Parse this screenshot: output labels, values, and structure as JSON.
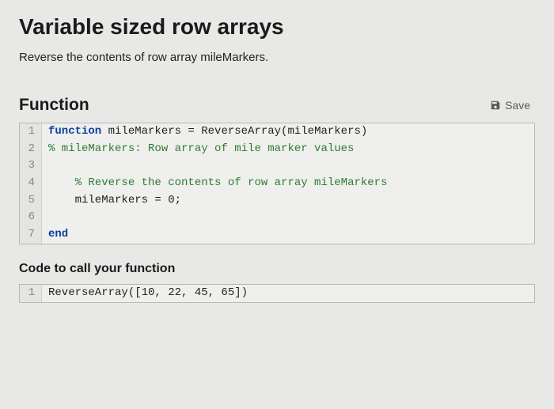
{
  "title": "Variable sized row arrays",
  "prompt": "Reverse the contents of row array mileMarkers.",
  "function_heading": "Function",
  "save_label": "Save",
  "editor": {
    "lines": [
      {
        "n": "1",
        "segments": [
          {
            "cls": "kw",
            "text": "function"
          },
          {
            "cls": "",
            "text": " mileMarkers = ReverseArray(mileMarkers)"
          }
        ]
      },
      {
        "n": "2",
        "segments": [
          {
            "cls": "cm",
            "text": "% mileMarkers: Row array of mile marker values"
          }
        ]
      },
      {
        "n": "3",
        "segments": []
      },
      {
        "n": "4",
        "segments": [
          {
            "cls": "",
            "text": "    "
          },
          {
            "cls": "cm",
            "text": "% Reverse the contents of row array mileMarkers"
          }
        ]
      },
      {
        "n": "5",
        "segments": [
          {
            "cls": "",
            "text": "    mileMarkers = 0;"
          }
        ]
      },
      {
        "n": "6",
        "segments": []
      },
      {
        "n": "7",
        "segments": [
          {
            "cls": "kw",
            "text": "end"
          }
        ]
      }
    ]
  },
  "call_heading": "Code to call your function",
  "call_editor": {
    "lines": [
      {
        "n": "1",
        "segments": [
          {
            "cls": "",
            "text": "ReverseArray([10, 22, 45, 65])"
          }
        ]
      }
    ]
  },
  "colors": {
    "bg": "#e8e8e6",
    "border": "#b8b8b6",
    "gutter_bg": "#e4e4e2",
    "keyword": "#0a3ea0",
    "comment": "#2e7d32"
  }
}
